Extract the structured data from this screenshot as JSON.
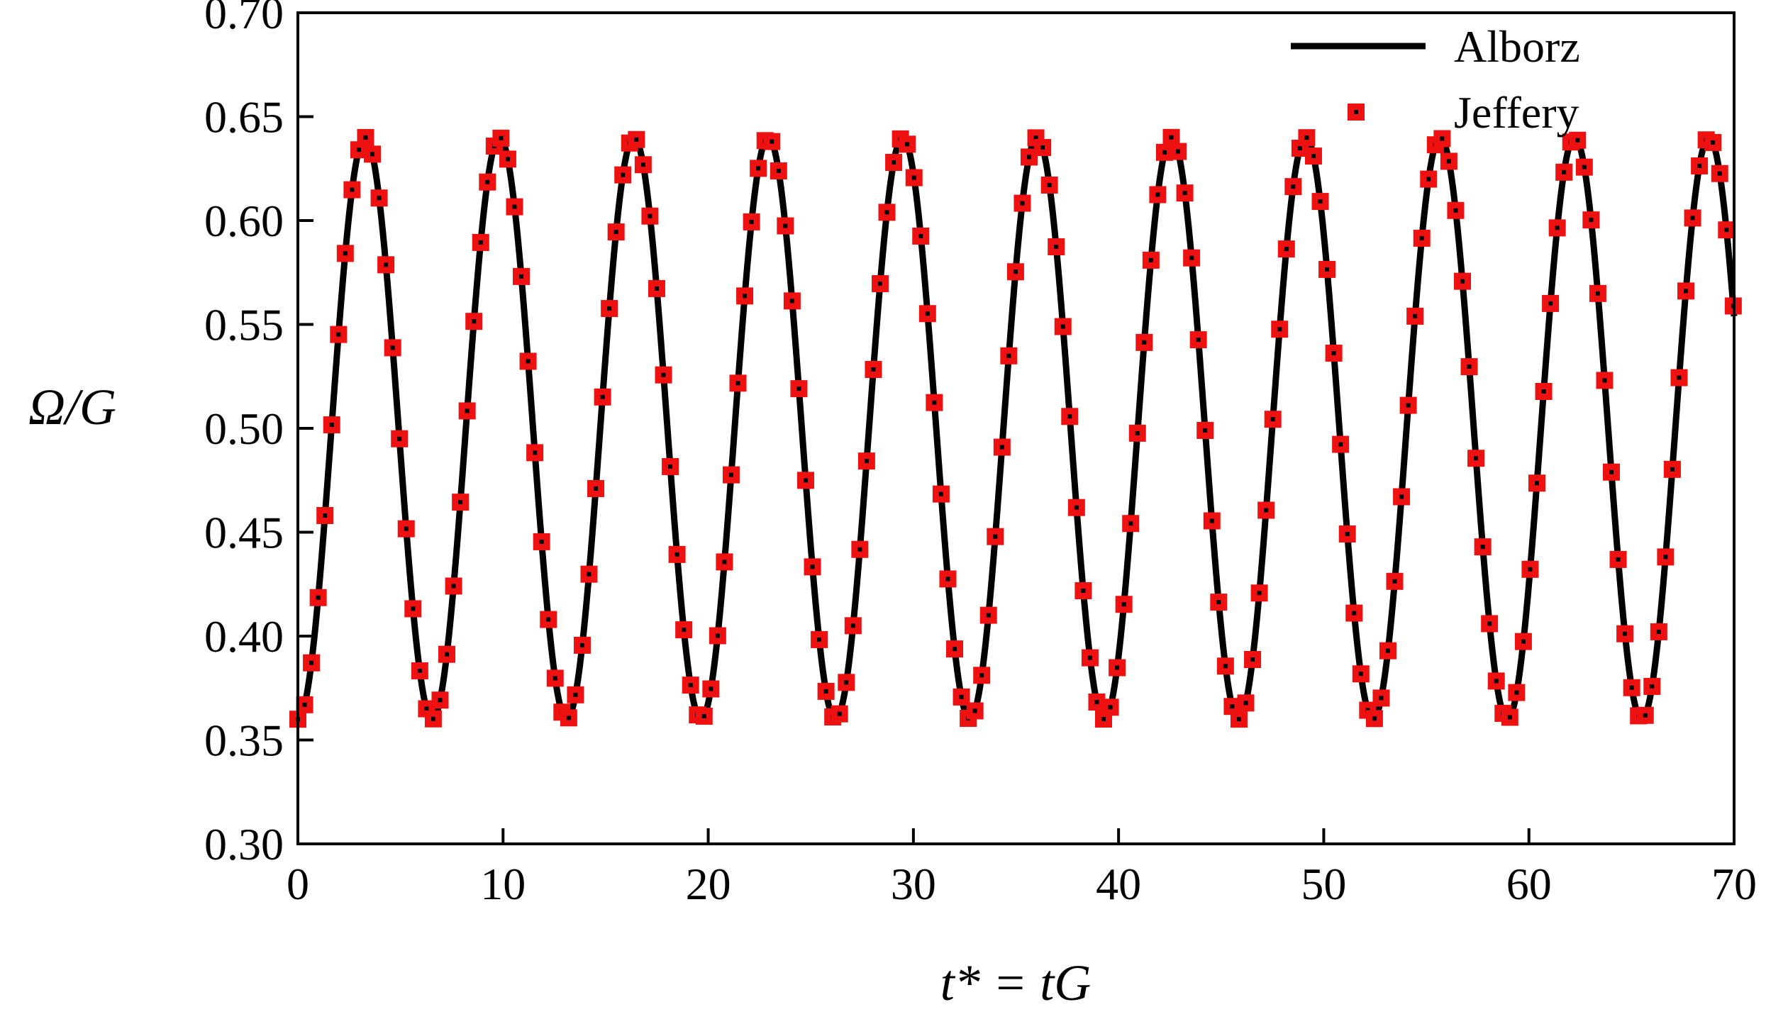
{
  "chart_data": {
    "type": "line",
    "xlabel": "t* = tG",
    "ylabel": "Ω/G",
    "xlim": [
      0,
      70
    ],
    "ylim": [
      0.3,
      0.7
    ],
    "xticks": [
      "0",
      "10",
      "20",
      "30",
      "40",
      "50",
      "60",
      "70"
    ],
    "yticks": [
      "0.30",
      "0.35",
      "0.40",
      "0.45",
      "0.50",
      "0.55",
      "0.60",
      "0.65",
      "0.70"
    ],
    "grid": false,
    "legend_position": "top-right",
    "series": [
      {
        "name": "Alborz",
        "style": "line",
        "color": "#000000",
        "function": "0.50 - 0.14*cos(2*pi*t/6.55)",
        "x": [
          0,
          1.64,
          3.28,
          4.91,
          6.55,
          8.19,
          9.83,
          11.46,
          13.1,
          14.74,
          16.38,
          18.01,
          19.65,
          21.29,
          22.93,
          24.56,
          26.2,
          27.84,
          29.48,
          31.11,
          32.75,
          34.39,
          36.03,
          37.66,
          39.3,
          40.94,
          42.58,
          44.21,
          45.85,
          47.49,
          49.13,
          50.76,
          52.4,
          54.04,
          55.68,
          57.31,
          58.95,
          60.59,
          62.23,
          63.86,
          65.5,
          67.14,
          68.78,
          70.0
        ],
        "y": [
          0.36,
          0.5,
          0.64,
          0.5,
          0.36,
          0.5,
          0.64,
          0.5,
          0.36,
          0.5,
          0.64,
          0.5,
          0.36,
          0.5,
          0.64,
          0.5,
          0.36,
          0.5,
          0.64,
          0.5,
          0.36,
          0.5,
          0.64,
          0.5,
          0.36,
          0.5,
          0.64,
          0.5,
          0.36,
          0.5,
          0.64,
          0.5,
          0.36,
          0.5,
          0.64,
          0.5,
          0.36,
          0.5,
          0.64,
          0.5,
          0.36,
          0.5,
          0.64,
          0.52
        ]
      },
      {
        "name": "Jeffery",
        "style": "markers",
        "marker": "square",
        "color": "#ee1111",
        "function": "0.50 - 0.14*cos(2*pi*t/6.55)",
        "sample_step": 0.33,
        "x": [
          0,
          1.64,
          3.28,
          4.91,
          6.55,
          8.19,
          9.83,
          11.46,
          13.1,
          14.74,
          16.38,
          18.01,
          19.65,
          21.29,
          22.93,
          24.56,
          26.2,
          27.84,
          29.48,
          31.11,
          32.75,
          34.39,
          36.03,
          37.66,
          39.3,
          40.94,
          42.58,
          44.21,
          45.85,
          47.49,
          49.13,
          50.76,
          52.4,
          54.04,
          55.68,
          57.31,
          58.95,
          60.59,
          62.23,
          63.86,
          65.5,
          67.14,
          68.78,
          70.0
        ],
        "y": [
          0.36,
          0.5,
          0.64,
          0.5,
          0.36,
          0.5,
          0.64,
          0.5,
          0.36,
          0.5,
          0.64,
          0.5,
          0.36,
          0.5,
          0.64,
          0.5,
          0.36,
          0.5,
          0.64,
          0.5,
          0.36,
          0.5,
          0.64,
          0.5,
          0.36,
          0.5,
          0.64,
          0.5,
          0.36,
          0.5,
          0.64,
          0.5,
          0.36,
          0.5,
          0.64,
          0.5,
          0.36,
          0.5,
          0.64,
          0.5,
          0.36,
          0.5,
          0.64,
          0.52
        ]
      }
    ]
  }
}
